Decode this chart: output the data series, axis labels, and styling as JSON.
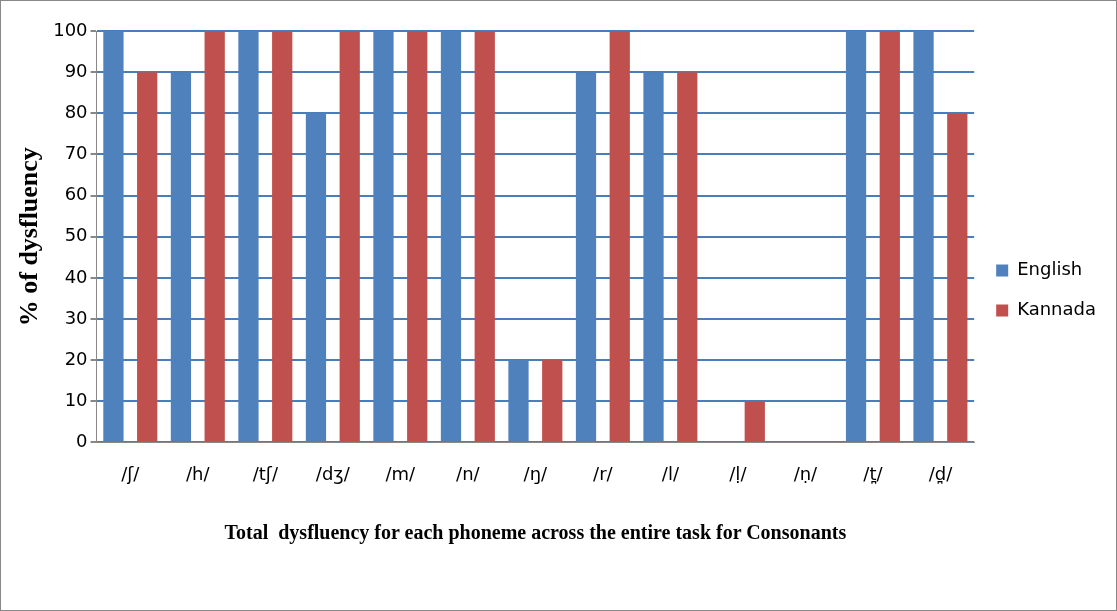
{
  "chart_data": {
    "type": "bar",
    "xlabel": "Total  dysfluency for each phoneme across the entire task for Consonants",
    "ylabel": "% of dysfluency",
    "categories": [
      "/ʃ/",
      "/h/",
      "/tʃ/",
      "/dʒ/",
      "/m/",
      "/n/",
      "/ŋ/",
      "/r/",
      "/l/",
      "/ḷ/",
      "/ṇ/",
      "/t̪/",
      "/d̪/"
    ],
    "series": [
      {
        "name": "English",
        "color": "#4f81bd",
        "values": [
          100,
          90,
          100,
          80,
          100,
          100,
          20,
          90,
          90,
          0,
          0,
          100,
          100
        ]
      },
      {
        "name": "Kannada",
        "color": "#c0504d",
        "values": [
          90,
          100,
          100,
          100,
          100,
          100,
          20,
          100,
          90,
          10,
          0,
          100,
          80
        ]
      }
    ],
    "ylim": [
      0,
      100
    ],
    "yticks": [
      0,
      10,
      20,
      30,
      40,
      50,
      60,
      70,
      80,
      90,
      100
    ],
    "grid": "y",
    "legend": "right"
  }
}
